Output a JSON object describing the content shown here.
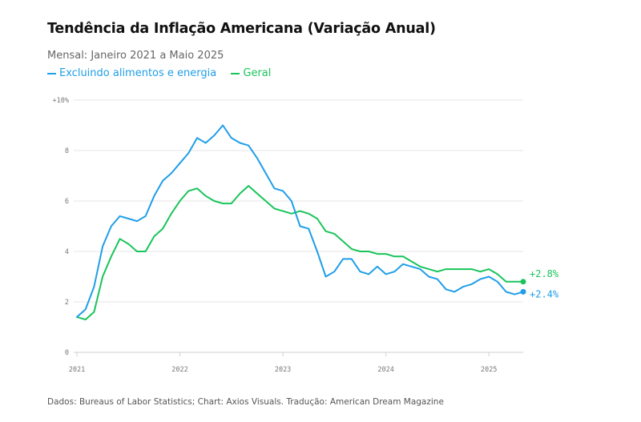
{
  "title": "Tendência da Inflação Americana (Variação Anual)",
  "subtitle": "Mensal: Janeiro 2021 a Maio 2025",
  "source": "Dados: Bureaus of Labor Statistics; Chart: Axios Visuals. Tradução: American Dream Magazine",
  "colors": {
    "core": "#1f9ee8",
    "headline": "#19c45a",
    "grid": "#e6e6e6",
    "axis": "#cfcfcf"
  },
  "chart_data": {
    "type": "line",
    "title": "Tendência da Inflação Americana (Variação Anual)",
    "xlabel": "",
    "ylabel": "",
    "ylim": [
      0,
      10
    ],
    "y_ticks": [
      {
        "value": 0,
        "label": "0"
      },
      {
        "value": 2,
        "label": "2"
      },
      {
        "value": 4,
        "label": "4"
      },
      {
        "value": 6,
        "label": "6"
      },
      {
        "value": 8,
        "label": "8"
      },
      {
        "value": 10,
        "label": "+10%"
      }
    ],
    "x_ticks": [
      {
        "index": 0,
        "label": "2021"
      },
      {
        "index": 12,
        "label": "2022"
      },
      {
        "index": 24,
        "label": "2023"
      },
      {
        "index": 36,
        "label": "2024"
      },
      {
        "index": 48,
        "label": "2025"
      }
    ],
    "x_count": 53,
    "series": [
      {
        "name": "Excluindo alimentos e energia",
        "key": "core",
        "end_label": "+2.4%",
        "values": [
          1.4,
          1.7,
          2.6,
          4.2,
          5.0,
          5.4,
          5.3,
          5.2,
          5.4,
          6.2,
          6.8,
          7.1,
          7.5,
          7.9,
          8.5,
          8.3,
          8.6,
          9.0,
          8.5,
          8.3,
          8.2,
          7.7,
          7.1,
          6.5,
          6.4,
          6.0,
          5.0,
          4.9,
          4.0,
          3.0,
          3.2,
          3.7,
          3.7,
          3.2,
          3.1,
          3.4,
          3.1,
          3.2,
          3.5,
          3.4,
          3.3,
          3.0,
          2.9,
          2.5,
          2.4,
          2.6,
          2.7,
          2.9,
          3.0,
          2.8,
          2.4,
          2.3,
          2.4
        ]
      },
      {
        "name": "Geral",
        "key": "headline",
        "end_label": "+2.8%",
        "values": [
          1.4,
          1.3,
          1.6,
          3.0,
          3.8,
          4.5,
          4.3,
          4.0,
          4.0,
          4.6,
          4.9,
          5.5,
          6.0,
          6.4,
          6.5,
          6.2,
          6.0,
          5.9,
          5.9,
          6.3,
          6.6,
          6.3,
          6.0,
          5.7,
          5.6,
          5.5,
          5.6,
          5.5,
          5.3,
          4.8,
          4.7,
          4.4,
          4.1,
          4.0,
          4.0,
          3.9,
          3.9,
          3.8,
          3.8,
          3.6,
          3.4,
          3.3,
          3.2,
          3.3,
          3.3,
          3.3,
          3.3,
          3.2,
          3.3,
          3.1,
          2.8,
          2.8,
          2.8
        ]
      }
    ]
  }
}
